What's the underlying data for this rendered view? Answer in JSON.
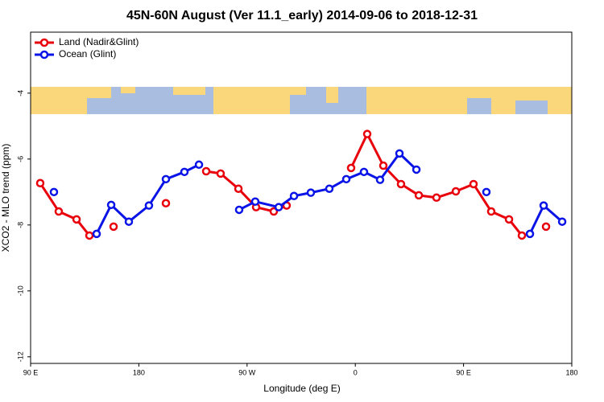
{
  "chart_data": {
    "type": "line",
    "title": "45N-60N August (Ver 11.1_early)   2014-09-06 to 2018-12-31",
    "x_label": "Longitude (deg E)",
    "y_label": "XCO2 - MLO trend (ppm)",
    "xlim": [
      90,
      540
    ],
    "xticks": [
      {
        "value": 90,
        "label": "90 E"
      },
      {
        "value": 180,
        "label": "180"
      },
      {
        "value": 270,
        "label": "90 W"
      },
      {
        "value": 360,
        "label": "0"
      },
      {
        "value": 450,
        "label": "90 E"
      },
      {
        "value": 540,
        "label": "180"
      }
    ],
    "ylim": [
      -12.2,
      -2.15
    ],
    "yticks": [
      -4,
      -6,
      -8,
      -10,
      -12
    ],
    "legend": "upper left",
    "series": [
      {
        "name": "Land (Nadir&Glint)",
        "color": "#e8000b",
        "x": [
          98,
          113.4,
          128.2,
          138.9,
          null,
          159.0,
          null,
          202.5,
          null,
          236.0,
          248.0,
          262.8,
          277.5,
          292.2,
          302.9,
          null,
          356.5,
          369.9,
          383.3,
          398.0,
          412.8,
          427.5,
          443.6,
          458.3,
          473.0,
          487.8,
          498.5,
          null,
          518.6
        ],
        "values": [
          -6.73,
          -7.59,
          -7.83,
          -8.32,
          null,
          -8.05,
          null,
          -7.34,
          null,
          -6.37,
          -6.44,
          -6.9,
          -7.46,
          -7.59,
          -7.41,
          null,
          -6.27,
          -5.24,
          -6.2,
          -6.76,
          -7.1,
          -7.17,
          -6.98,
          -6.76,
          -7.59,
          -7.83,
          -8.32,
          null,
          -8.05
        ]
      },
      {
        "name": "Ocean (Glint)",
        "color": "#0a14e6",
        "x": [
          109.4,
          null,
          144.9,
          157.0,
          171.7,
          188.4,
          202.5,
          217.9,
          230.0,
          null,
          263.4,
          276.8,
          296.3,
          309.0,
          323.0,
          338.4,
          352.5,
          367.2,
          380.6,
          396.7,
          410.8,
          null,
          469.0,
          null,
          505.2,
          516.6,
          532.0
        ],
        "values": [
          -7.0,
          null,
          -8.27,
          -7.39,
          -7.9,
          -7.41,
          -6.61,
          -6.39,
          -6.17,
          null,
          -7.54,
          -7.29,
          -7.46,
          -7.12,
          -7.02,
          -6.9,
          -6.61,
          -6.39,
          -6.63,
          -5.83,
          -6.32,
          null,
          -7.0,
          null,
          -8.27,
          -7.41,
          -7.9
        ]
      }
    ]
  }
}
